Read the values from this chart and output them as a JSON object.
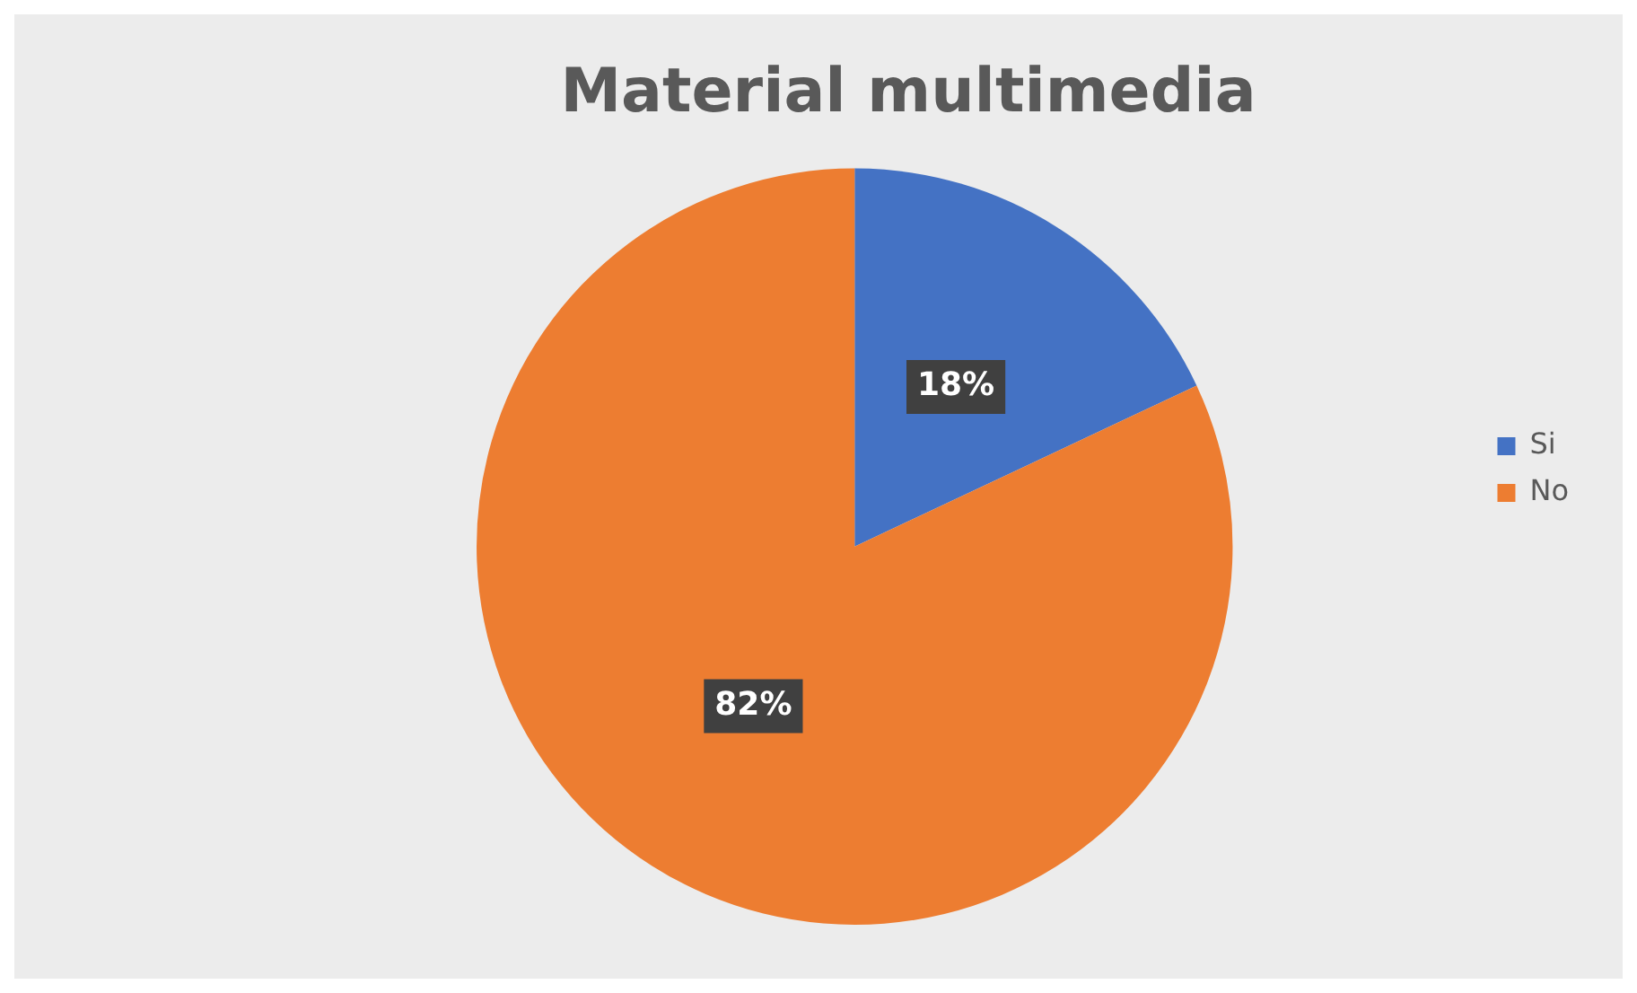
{
  "chart_data": {
    "type": "pie",
    "title": "Material multimedia",
    "categories": [
      "Si",
      "No"
    ],
    "values": [
      18,
      82
    ],
    "colors": [
      "#4472c4",
      "#ed7d31"
    ],
    "value_labels": [
      "18%",
      "82%"
    ],
    "legend": "right"
  }
}
